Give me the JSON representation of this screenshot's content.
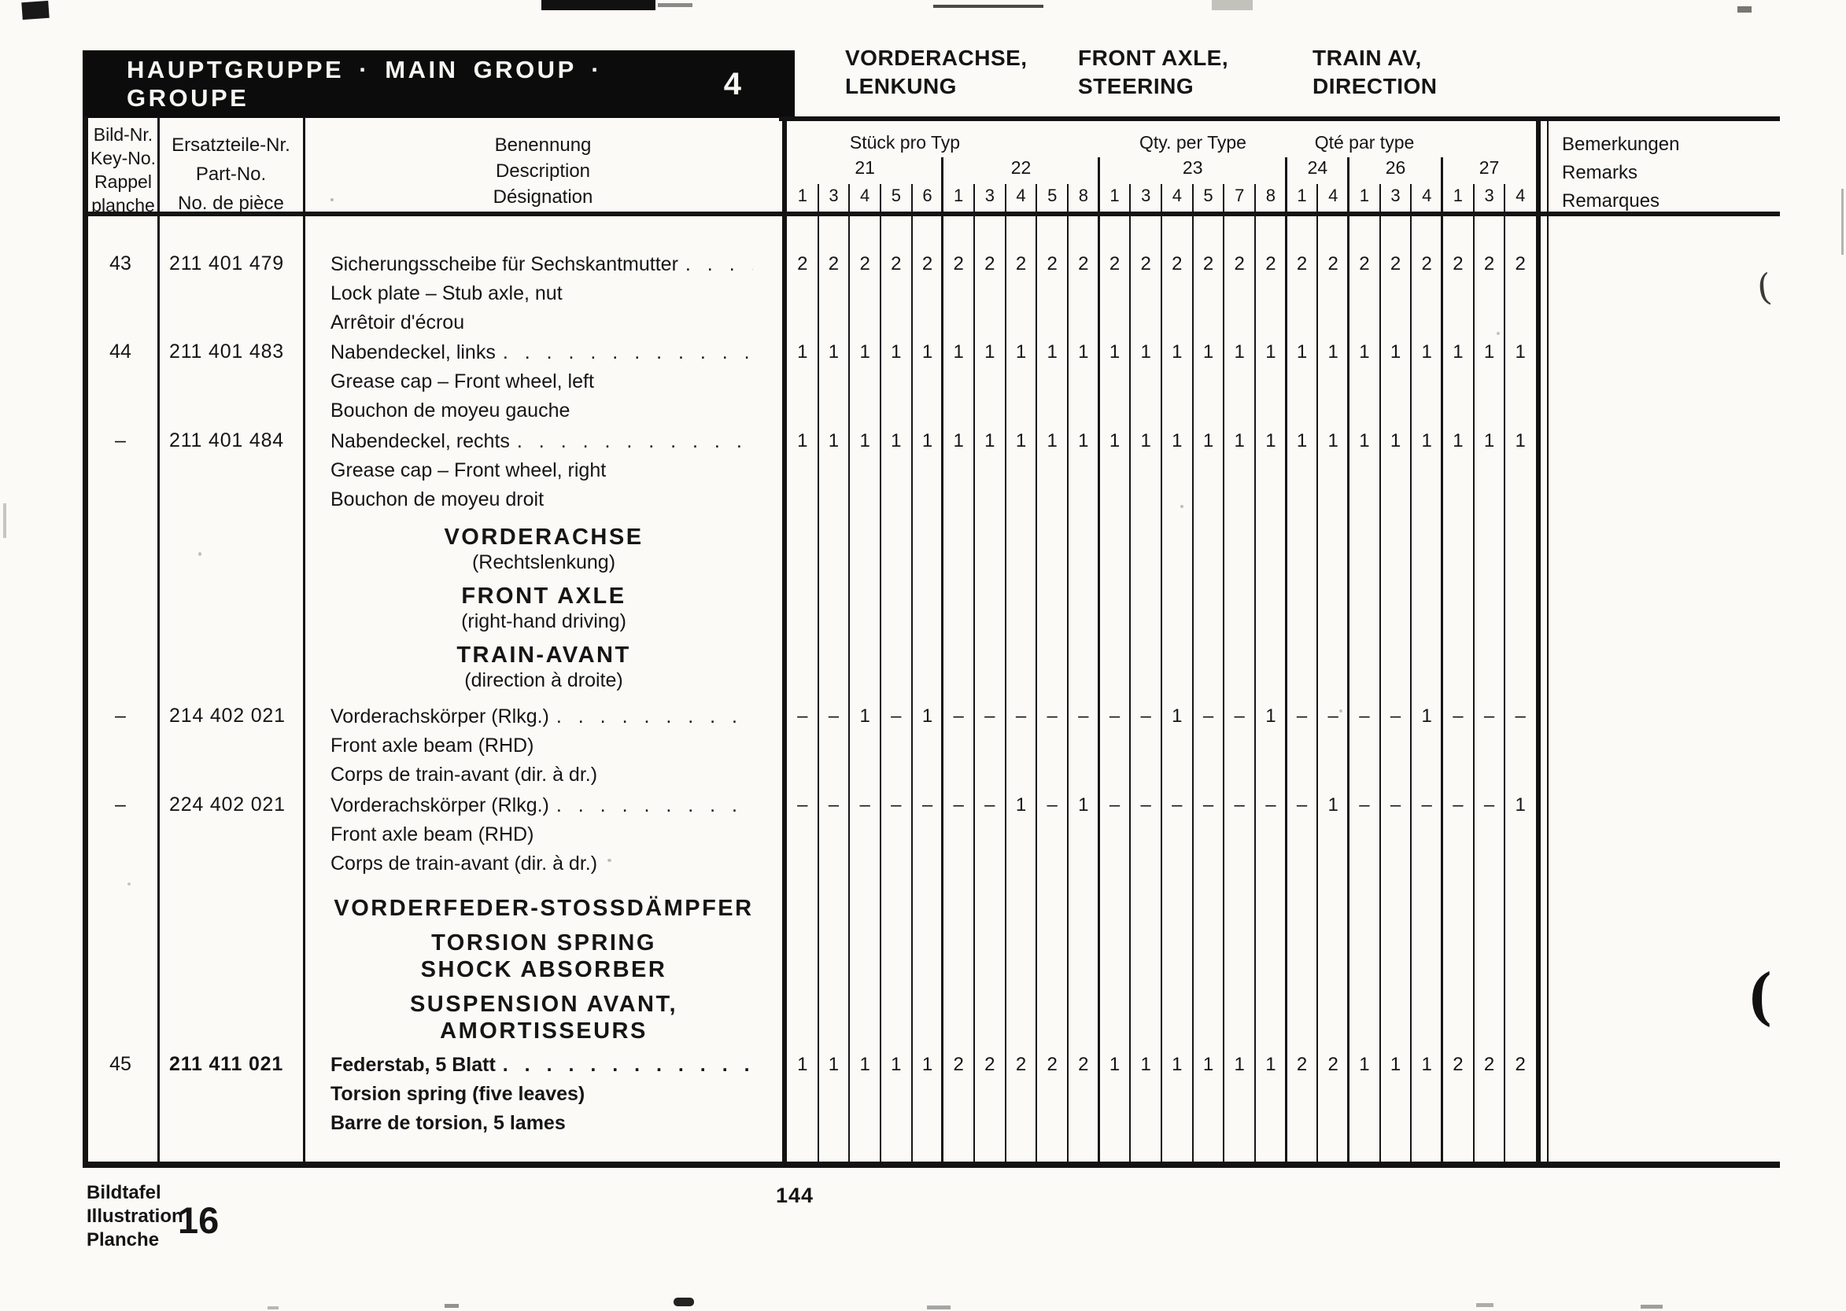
{
  "header_bar": {
    "title": "HAUPTGRUPPE · MAIN GROUP · GROUPE",
    "group_number": "4"
  },
  "top_headers": [
    {
      "line1": "VORDERACHSE,",
      "line2": "LENKUNG"
    },
    {
      "line1": "FRONT AXLE,",
      "line2": "STEERING"
    },
    {
      "line1": "TRAIN AV,",
      "line2": "DIRECTION"
    }
  ],
  "table": {
    "col_headers": {
      "key": [
        "Bild-Nr.",
        "Key-No.",
        "Rappel",
        "planche"
      ],
      "part": [
        "Ersatzteile-Nr.",
        "Part-No.",
        "No. de pièce"
      ],
      "desc": [
        "Benennung",
        "Description",
        "Désignation"
      ],
      "qty_titles": [
        "Stück pro Typ",
        "Qty. per Type",
        "Qté par type"
      ],
      "remarks": [
        "Bemerkungen",
        "Remarks",
        "Remarques"
      ]
    },
    "type_groups": [
      {
        "label": "21",
        "cols": [
          "1",
          "3",
          "4",
          "5",
          "6"
        ]
      },
      {
        "label": "22",
        "cols": [
          "1",
          "3",
          "4",
          "5",
          "8"
        ]
      },
      {
        "label": "23",
        "cols": [
          "1",
          "3",
          "4",
          "5",
          "7",
          "8"
        ]
      },
      {
        "label": "24",
        "cols": [
          "1",
          "4"
        ]
      },
      {
        "label": "26",
        "cols": [
          "1",
          "3",
          "4"
        ]
      },
      {
        "label": "27",
        "cols": [
          "1",
          "3",
          "4"
        ]
      }
    ],
    "items": [
      {
        "type": "part",
        "key": "43",
        "part": "211 401 479",
        "bold": false,
        "desc": [
          "Sicherungsscheibe für Sechskantmutter",
          "Lock plate – Stub axle, nut",
          "Arrêtoir d'écrou"
        ],
        "qty": [
          "2",
          "2",
          "2",
          "2",
          "2",
          "2",
          "2",
          "2",
          "2",
          "2",
          "2",
          "2",
          "2",
          "2",
          "2",
          "2",
          "2",
          "2",
          "2",
          "2",
          "2",
          "2",
          "2",
          "2"
        ]
      },
      {
        "type": "part",
        "key": "44",
        "part": "211 401 483",
        "bold": false,
        "desc": [
          "Nabendeckel, links",
          "Grease cap – Front wheel, left",
          "Bouchon de moyeu gauche"
        ],
        "qty": [
          "1",
          "1",
          "1",
          "1",
          "1",
          "1",
          "1",
          "1",
          "1",
          "1",
          "1",
          "1",
          "1",
          "1",
          "1",
          "1",
          "1",
          "1",
          "1",
          "1",
          "1",
          "1",
          "1",
          "1"
        ]
      },
      {
        "type": "part",
        "key": "–",
        "part": "211 401 484",
        "bold": false,
        "desc": [
          "Nabendeckel, rechts",
          "Grease cap – Front wheel, right",
          "Bouchon de moyeu droit"
        ],
        "qty": [
          "1",
          "1",
          "1",
          "1",
          "1",
          "1",
          "1",
          "1",
          "1",
          "1",
          "1",
          "1",
          "1",
          "1",
          "1",
          "1",
          "1",
          "1",
          "1",
          "1",
          "1",
          "1",
          "1",
          "1"
        ]
      },
      {
        "type": "section",
        "groups": [
          [
            "VORDERACHSE",
            "(Rechtslenkung)"
          ],
          [
            "FRONT AXLE",
            "(right-hand driving)"
          ],
          [
            "TRAIN-AVANT",
            "(direction à droite)"
          ]
        ]
      },
      {
        "type": "part",
        "key": "–",
        "part": "214 402 021",
        "bold": false,
        "desc": [
          "Vorderachskörper (Rlkg.)",
          "Front axle beam (RHD)",
          "Corps de train-avant (dir. à dr.)"
        ],
        "qty": [
          "–",
          "–",
          "1",
          "–",
          "1",
          "–",
          "–",
          "–",
          "–",
          "–",
          "–",
          "–",
          "1",
          "–",
          "–",
          "1",
          "–",
          "–",
          "–",
          "–",
          "1",
          "–",
          "–",
          "–"
        ]
      },
      {
        "type": "part",
        "key": "–",
        "part": "224 402 021",
        "bold": false,
        "desc": [
          "Vorderachskörper (Rlkg.)",
          "Front axle beam (RHD)",
          "Corps de train-avant (dir. à dr.)"
        ],
        "qty": [
          "–",
          "–",
          "–",
          "–",
          "–",
          "–",
          "–",
          "1",
          "–",
          "1",
          "–",
          "–",
          "–",
          "–",
          "–",
          "–",
          "–",
          "1",
          "–",
          "–",
          "–",
          "–",
          "–",
          "1"
        ]
      },
      {
        "type": "section",
        "groups": [
          [
            "VORDERFEDER-STOSSDÄMPFER"
          ],
          [
            "TORSION SPRING",
            "SHOCK ABSORBER"
          ],
          [
            "SUSPENSION AVANT,",
            "AMORTISSEURS"
          ]
        ]
      },
      {
        "type": "part",
        "key": "45",
        "part": "211 411 021",
        "bold": true,
        "desc": [
          "Federstab, 5 Blatt",
          "Torsion spring (five leaves)",
          "Barre de torsion, 5 lames"
        ],
        "qty": [
          "1",
          "1",
          "1",
          "1",
          "1",
          "2",
          "2",
          "2",
          "2",
          "2",
          "1",
          "1",
          "1",
          "1",
          "1",
          "1",
          "2",
          "2",
          "1",
          "1",
          "1",
          "2",
          "2",
          "2"
        ]
      }
    ]
  },
  "leader_dots": ". . . . . . . . . . . . . . . . . . . . . . . . . . . . . . . . . . . . . . . . . . . .",
  "footer": {
    "plate_labels": [
      "Bildtafel",
      "Illustration",
      "Planche"
    ],
    "plate_number": "16",
    "page_number": "144"
  }
}
